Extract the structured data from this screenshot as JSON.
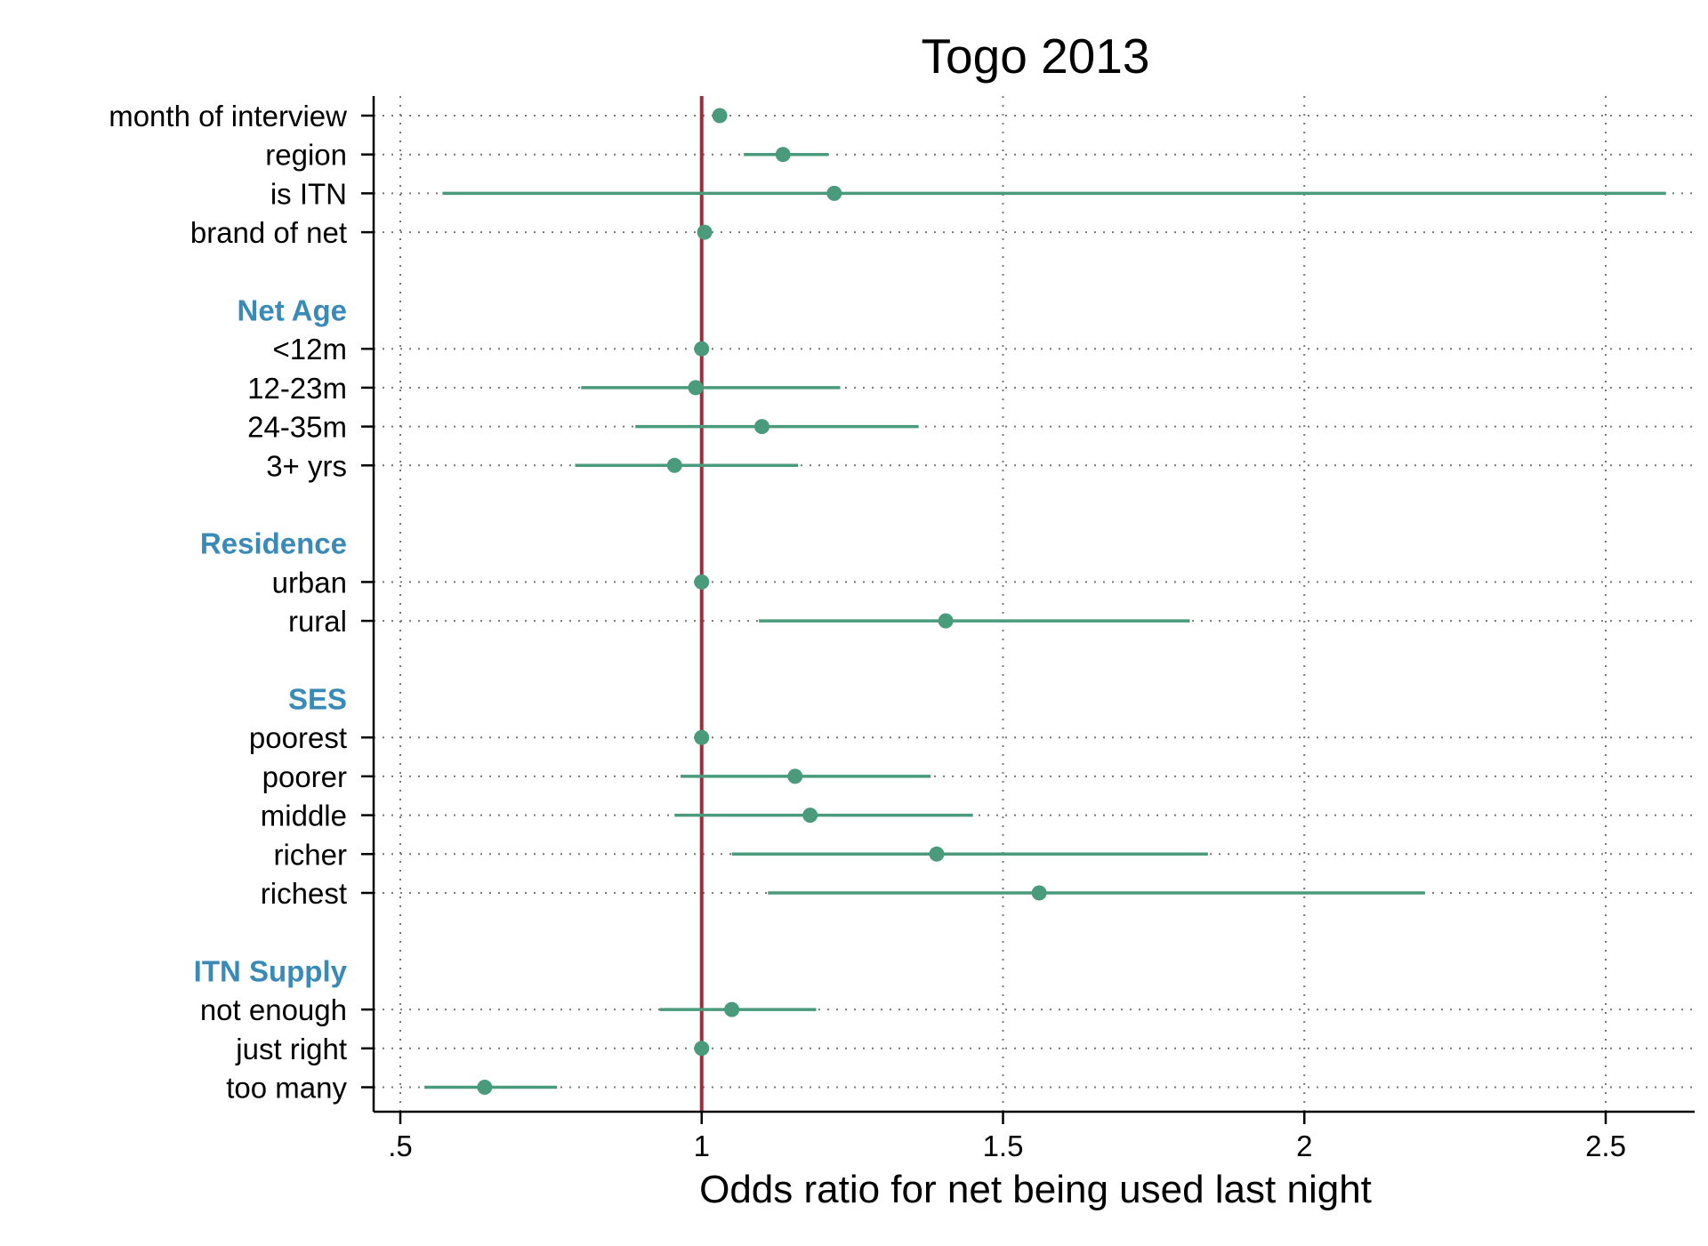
{
  "chart_data": {
    "type": "scatter",
    "subtype": "coefficient-plot",
    "title": "Togo 2013",
    "xlabel": "Odds ratio for net being used last night",
    "ylabel": "",
    "xlim": [
      0.5,
      2.65
    ],
    "xticks": [
      0.5,
      1,
      1.5,
      2,
      2.5
    ],
    "xtick_labels": [
      ".5",
      "1",
      "1.5",
      "2",
      "2.5"
    ],
    "reference_line": 1,
    "grid": "dotted",
    "legend": "none",
    "colors": {
      "point": "#4a9b7c",
      "ci": "#4a9b7c",
      "reference": "#a52a3a",
      "group_label": "#3a8ab8",
      "grid": "#777777",
      "text": "#000000"
    },
    "rows": [
      {
        "label": "month of interview",
        "kind": "item",
        "est": 1.03,
        "lo": null,
        "hi": null
      },
      {
        "label": "region",
        "kind": "item",
        "est": 1.135,
        "lo": 1.07,
        "hi": 1.21
      },
      {
        "label": "is ITN",
        "kind": "item",
        "est": 1.22,
        "lo": 0.57,
        "hi": 2.6
      },
      {
        "label": "brand of net",
        "kind": "item",
        "est": 1.005,
        "lo": null,
        "hi": null
      },
      {
        "label": "",
        "kind": "gap"
      },
      {
        "label": "Net Age",
        "kind": "group"
      },
      {
        "label": "<12m",
        "kind": "item",
        "est": 1.0,
        "lo": null,
        "hi": null
      },
      {
        "label": "12-23m",
        "kind": "item",
        "est": 0.99,
        "lo": 0.8,
        "hi": 1.23
      },
      {
        "label": "24-35m",
        "kind": "item",
        "est": 1.1,
        "lo": 0.89,
        "hi": 1.36
      },
      {
        "label": "3+ yrs",
        "kind": "item",
        "est": 0.955,
        "lo": 0.79,
        "hi": 1.16
      },
      {
        "label": "",
        "kind": "gap"
      },
      {
        "label": "Residence",
        "kind": "group"
      },
      {
        "label": "urban",
        "kind": "item",
        "est": 1.0,
        "lo": null,
        "hi": null
      },
      {
        "label": "rural",
        "kind": "item",
        "est": 1.405,
        "lo": 1.095,
        "hi": 1.81
      },
      {
        "label": "",
        "kind": "gap"
      },
      {
        "label": "SES",
        "kind": "group"
      },
      {
        "label": "poorest",
        "kind": "item",
        "est": 1.0,
        "lo": null,
        "hi": null
      },
      {
        "label": "poorer",
        "kind": "item",
        "est": 1.155,
        "lo": 0.965,
        "hi": 1.38
      },
      {
        "label": "middle",
        "kind": "item",
        "est": 1.18,
        "lo": 0.955,
        "hi": 1.45
      },
      {
        "label": "richer",
        "kind": "item",
        "est": 1.39,
        "lo": 1.05,
        "hi": 1.84
      },
      {
        "label": "richest",
        "kind": "item",
        "est": 1.56,
        "lo": 1.11,
        "hi": 2.2
      },
      {
        "label": "",
        "kind": "gap"
      },
      {
        "label": "ITN Supply",
        "kind": "group"
      },
      {
        "label": "not enough",
        "kind": "item",
        "est": 1.05,
        "lo": 0.93,
        "hi": 1.19
      },
      {
        "label": "just right",
        "kind": "item",
        "est": 1.0,
        "lo": null,
        "hi": null
      },
      {
        "label": "too many",
        "kind": "item",
        "est": 0.64,
        "lo": 0.54,
        "hi": 0.76
      }
    ]
  }
}
